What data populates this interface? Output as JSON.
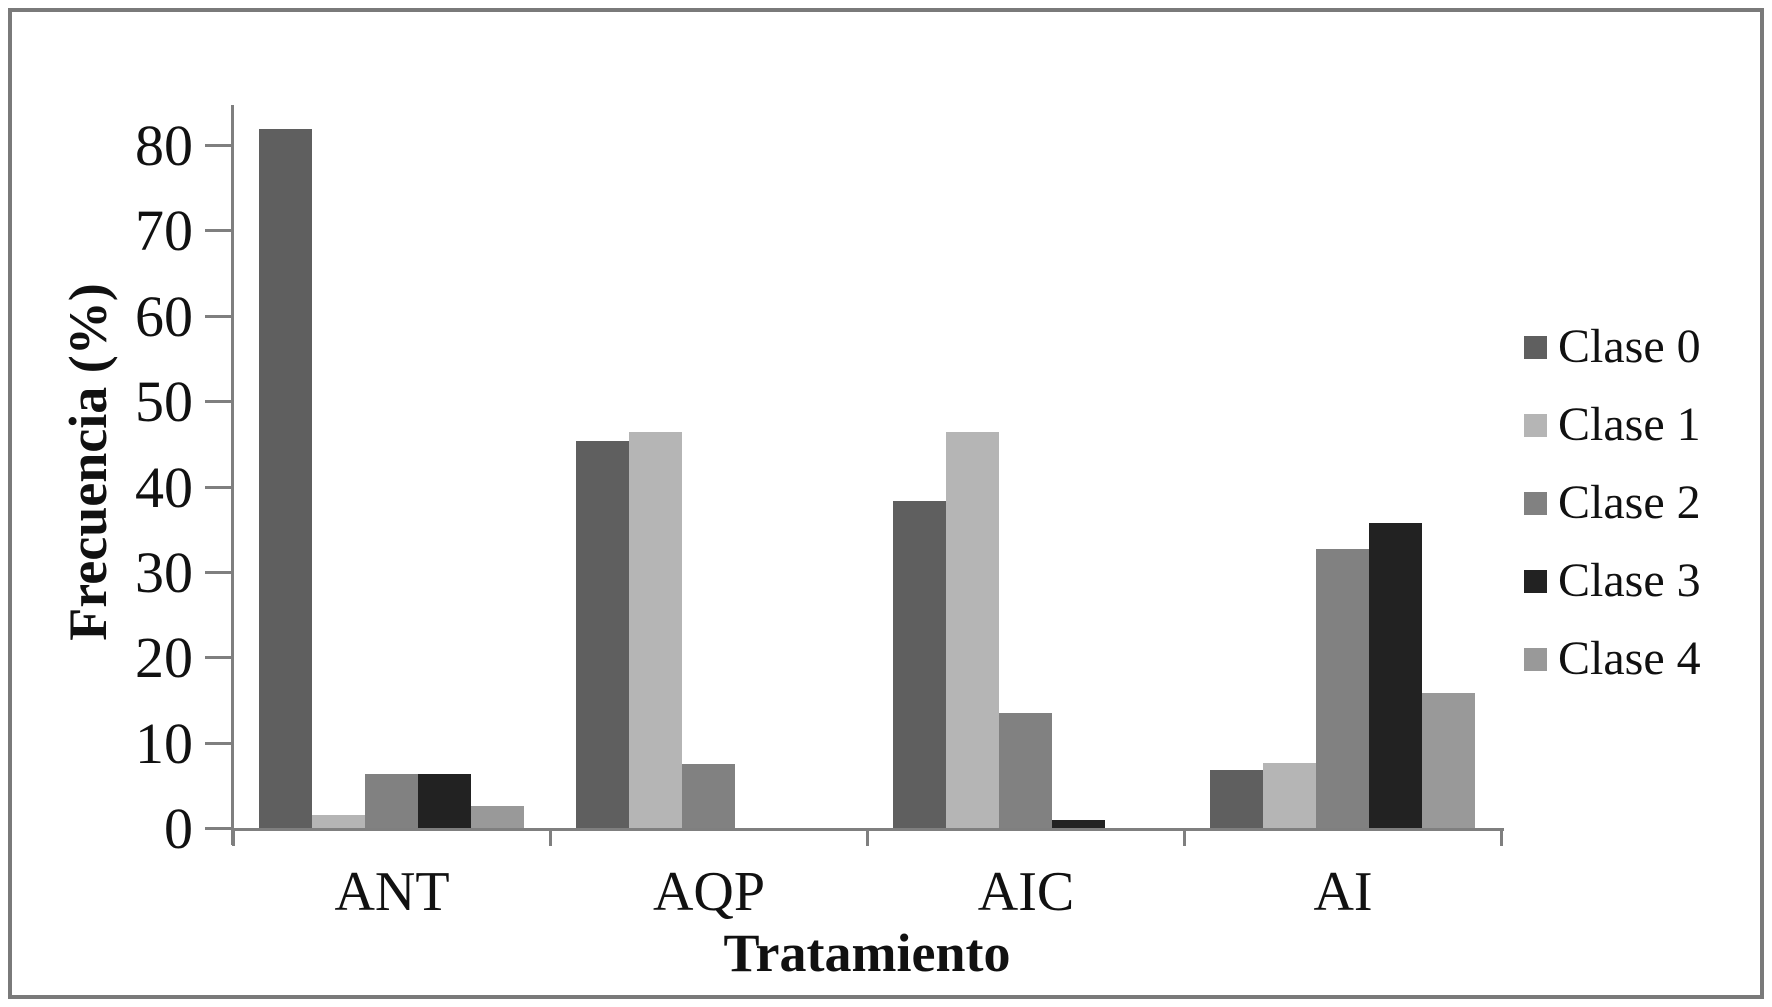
{
  "chart_data": {
    "type": "bar",
    "title": "",
    "xlabel": "Tratamiento",
    "ylabel": "Frecuencia (%)",
    "categories": [
      "ANT",
      "AQP",
      "AIC",
      "AI"
    ],
    "series": [
      {
        "name": "Clase 0",
        "color": "#5f5f5f",
        "values": [
          82.0,
          45.5,
          38.4,
          6.9
        ]
      },
      {
        "name": "Clase 1",
        "color": "#b5b5b5",
        "values": [
          1.6,
          46.5,
          46.5,
          7.7
        ]
      },
      {
        "name": "Clase 2",
        "color": "#818181",
        "values": [
          6.5,
          7.6,
          13.6,
          32.8
        ]
      },
      {
        "name": "Clase 3",
        "color": "#222222",
        "values": [
          6.5,
          0,
          1.1,
          35.8
        ]
      },
      {
        "name": "Clase 4",
        "color": "#999999",
        "values": [
          2.7,
          0,
          0,
          15.9
        ]
      }
    ],
    "yticks": [
      0,
      10,
      20,
      30,
      40,
      50,
      60,
      70,
      80
    ],
    "ylim": [
      0,
      85
    ],
    "grid": false,
    "legend_position": "right",
    "bar_orientation": "vertical"
  },
  "style": {
    "axis_color": "#7f7f7f",
    "frame_color": "#7a7a7a",
    "text_color": "#111111",
    "background": "#ffffff"
  }
}
